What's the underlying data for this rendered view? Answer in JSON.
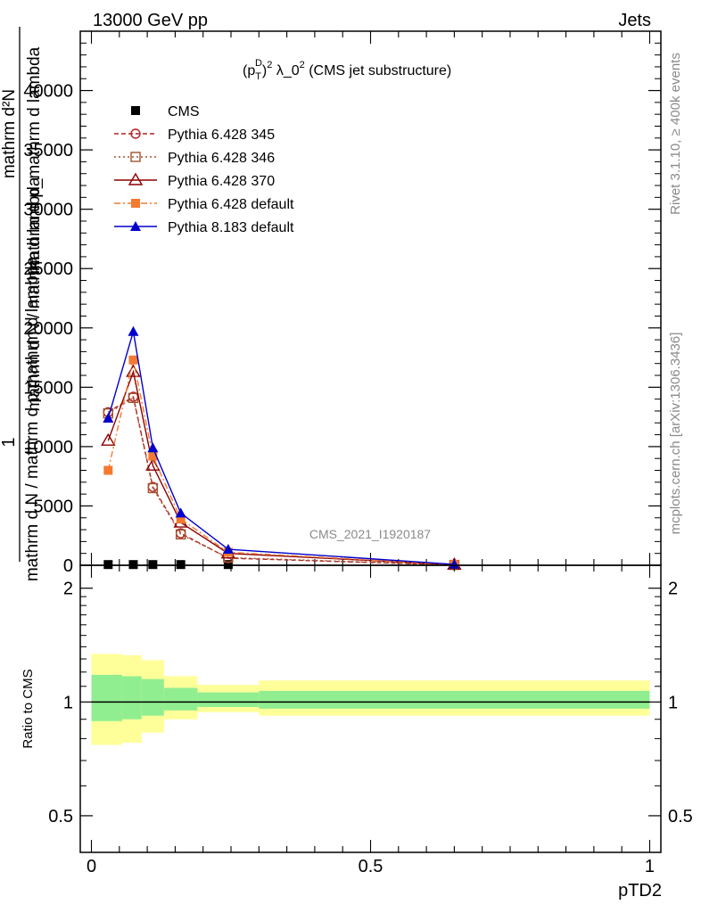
{
  "header": {
    "left": "13000 GeV pp",
    "right": "Jets"
  },
  "plot_title": "(p_T^D)^2 λ_0^2 (CMS jet substructure)",
  "plot_title_parts": {
    "open": "(p",
    "sub": "T",
    "sup1": "D",
    "close": ")",
    "sup2": "2",
    "lam": " λ_0",
    "sup3": "2",
    "rest": " (CMS jet substructure)"
  },
  "ylabel_main": {
    "one": "1",
    "numerator": "mathrm d²N",
    "numerator_overlap": "mathrm d p_mathrm d lambda",
    "denominator": "mathrm d N / mathrm d p mathrm d lambda",
    "den_overlap": "mathrm d N / mathrm d lambda"
  },
  "side_text": {
    "rivet": "Rivet 3.1.10, ≥ 400k events",
    "mcplots": "mcplots.cern.ch [arXiv:1306.3436]"
  },
  "watermark": "CMS_2021_I1920187",
  "ratio_ylabel": "Ratio to CMS",
  "xlabel": "pTD2",
  "chart_data": [
    {
      "type": "line",
      "title": "(p_T^D)^2 λ_0^2 (CMS jet substructure)",
      "xlabel": "pTD2",
      "ylabel": "1/N dN/dλ",
      "xlim": [
        -0.02,
        1.02
      ],
      "ylim": [
        0,
        45000
      ],
      "xticks": [
        0,
        0.5,
        1
      ],
      "xtick_labels": [
        "0",
        "0.5",
        "1"
      ],
      "yticks": [
        0,
        5000,
        10000,
        15000,
        20000,
        25000,
        30000,
        35000,
        40000
      ],
      "ytick_labels": [
        "0",
        "5000",
        "10000",
        "15000",
        "20000",
        "25000",
        "30000",
        "35000",
        "40000"
      ],
      "x": [
        0.03,
        0.075,
        0.11,
        0.16,
        0.245,
        0.65
      ],
      "series": [
        {
          "name": "CMS",
          "color": "#000000",
          "marker": "square-filled",
          "dash": "none",
          "values": [
            60,
            60,
            60,
            60,
            60,
            0
          ]
        },
        {
          "name": "Pythia 6.428 345",
          "color": "#b22222",
          "marker": "circle-open",
          "dash": "dashed",
          "values": [
            12900,
            14200,
            6600,
            2700,
            600,
            20
          ]
        },
        {
          "name": "Pythia 6.428 346",
          "color": "#a0522d",
          "marker": "square-open",
          "dash": "dotted",
          "values": [
            12800,
            14100,
            6500,
            2600,
            650,
            30
          ]
        },
        {
          "name": "Pythia 6.428 370",
          "color": "#8b0000",
          "marker": "triangle-open",
          "dash": "solid",
          "values": [
            10500,
            16300,
            8400,
            3600,
            1000,
            50
          ]
        },
        {
          "name": "Pythia 6.428 default",
          "color": "#f47a30",
          "marker": "square-filled",
          "dash": "dashdot",
          "values": [
            8000,
            17300,
            9200,
            3900,
            1100,
            60
          ]
        },
        {
          "name": "Pythia 8.183 default",
          "color": "#0000cc",
          "marker": "triangle-filled",
          "dash": "solid",
          "values": [
            12400,
            19700,
            9900,
            4400,
            1350,
            80
          ]
        }
      ]
    },
    {
      "type": "area",
      "title": "Ratio to CMS",
      "xlabel": "pTD2",
      "ylabel": "Ratio to CMS",
      "ylim": [
        0.4,
        2.3
      ],
      "yscale": "log",
      "yticks": [
        0.5,
        1,
        2
      ],
      "ytick_labels": [
        "0.5",
        "1",
        "2"
      ],
      "bins": [
        {
          "x": [
            0.0,
            0.055
          ],
          "yellow": [
            0.77,
            1.34
          ],
          "green": [
            0.89,
            1.18
          ]
        },
        {
          "x": [
            0.055,
            0.09
          ],
          "yellow": [
            0.78,
            1.33
          ],
          "green": [
            0.9,
            1.17
          ]
        },
        {
          "x": [
            0.09,
            0.13
          ],
          "yellow": [
            0.83,
            1.29
          ],
          "green": [
            0.92,
            1.15
          ]
        },
        {
          "x": [
            0.13,
            0.19
          ],
          "yellow": [
            0.9,
            1.17
          ],
          "green": [
            0.95,
            1.09
          ]
        },
        {
          "x": [
            0.19,
            0.3
          ],
          "yellow": [
            0.94,
            1.11
          ],
          "green": [
            0.97,
            1.06
          ]
        },
        {
          "x": [
            0.3,
            1.0
          ],
          "yellow": [
            0.92,
            1.14
          ],
          "green": [
            0.96,
            1.07
          ]
        }
      ]
    }
  ]
}
